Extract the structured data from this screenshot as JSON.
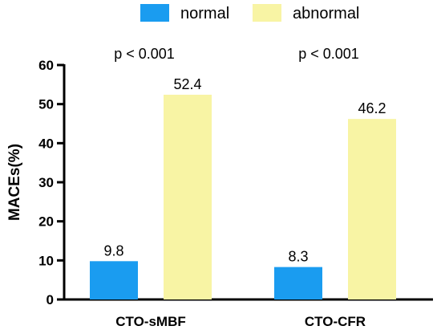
{
  "chart_data": {
    "type": "bar",
    "categories": [
      "CTO-sMBF",
      "CTO-CFR"
    ],
    "series": [
      {
        "name": "normal",
        "values": [
          9.8,
          8.3
        ],
        "color": "#1a9cf0"
      },
      {
        "name": "abnormal",
        "values": [
          52.4,
          46.2
        ],
        "color": "#f8f4a4"
      }
    ],
    "annotations": [
      "p < 0.001",
      "p < 0.001"
    ],
    "ylabel": "MACEs(%)",
    "xlabel": "",
    "ylim": [
      0,
      60
    ],
    "yticks": [
      0,
      10,
      20,
      30,
      40,
      50,
      60
    ],
    "legend_position": "top",
    "grid": false
  }
}
